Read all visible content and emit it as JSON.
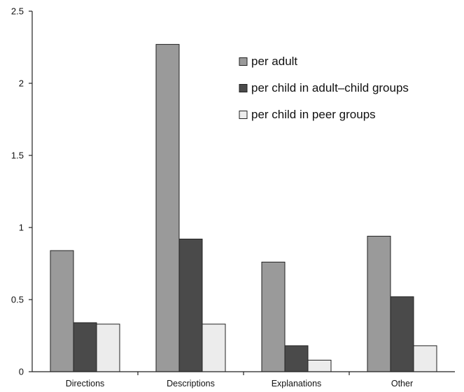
{
  "chart_data": {
    "type": "bar",
    "title": "",
    "xlabel": "",
    "ylabel": "",
    "categories": [
      "Directions",
      "Descriptions",
      "Explanations",
      "Other"
    ],
    "series": [
      {
        "name": "per adult",
        "color": "#9a9a9a",
        "values": [
          0.84,
          2.27,
          0.76,
          0.94
        ]
      },
      {
        "name": "per child in adult–child groups",
        "color": "#4a4a4a",
        "values": [
          0.34,
          0.92,
          0.18,
          0.52
        ]
      },
      {
        "name": "per child in peer groups",
        "color": "#ececec",
        "values": [
          0.33,
          0.33,
          0.08,
          0.18
        ]
      }
    ],
    "ylim": [
      0,
      2.5
    ],
    "yticks": [
      "0",
      "0.5",
      "1",
      "1.5",
      "2",
      "2.5"
    ],
    "grid": false,
    "legend_position": "top-right"
  }
}
